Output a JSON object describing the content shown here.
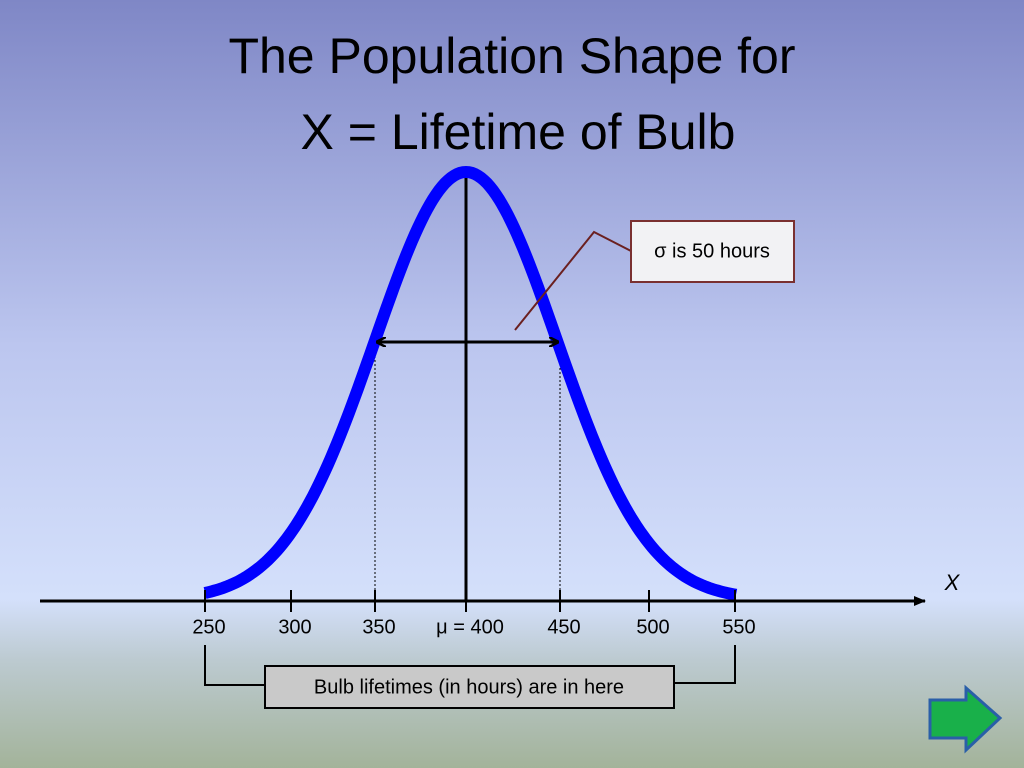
{
  "title": {
    "line1": "The Population Shape for",
    "line2": "X = Lifetime of Bulb"
  },
  "axis": {
    "label": "X",
    "ticks": [
      "250",
      "300",
      "350",
      "μ = 400",
      "450",
      "500",
      "550"
    ]
  },
  "callout": "σ is 50 hours",
  "range_label": "Bulb lifetimes (in hours) are in here"
}
